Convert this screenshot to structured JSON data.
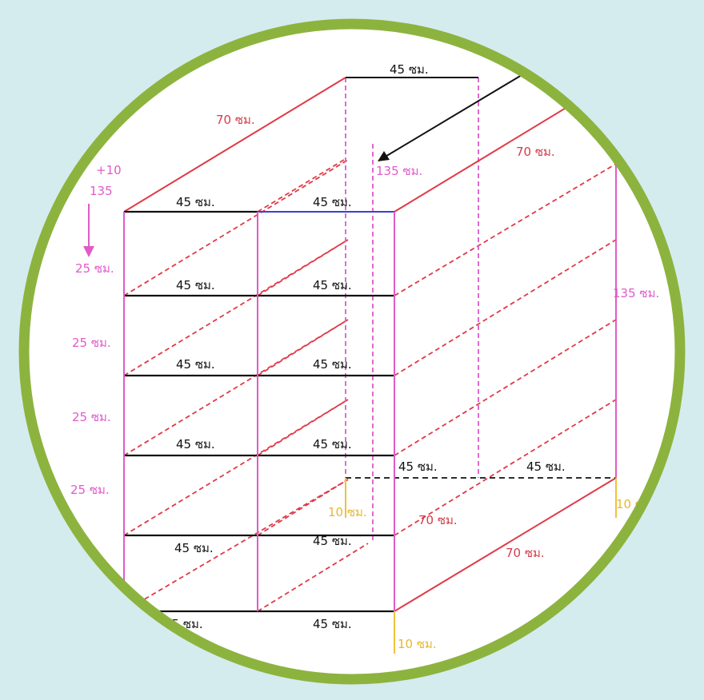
{
  "colors": {
    "background": "#d4ecee",
    "ring": "#8db33f",
    "disc": "#ffffff",
    "edge_red": "#e03a47",
    "post_pink": "#e05bc9",
    "shelf_black": "#111111",
    "top_blue": "#3a3fd6",
    "leg_yellow": "#f0c23a",
    "label_red": "#d33c4a",
    "label_pink": "#e05bc9",
    "label_yellow": "#e6b830",
    "label_black": "#111111"
  },
  "labels": {
    "top_width": "45 ซม.",
    "top_depth_left": "70 ซม.",
    "top_depth_right": "70 ซม.",
    "inner_height": "135 ซม.",
    "right_height": "135 ซม.",
    "side_note_1": "+10",
    "side_note_2": "135",
    "gap_1": "25 ซม.",
    "gap_2": "25 ซม.",
    "gap_3": "25 ซม.",
    "gap_4": "25 ซม.",
    "shelf_1_left": "45 ซม.",
    "shelf_1_right": "45 ซม.",
    "shelf_2_left": "45 ซม.",
    "shelf_2_right": "45 ซม.",
    "shelf_3_left": "45 ซม.",
    "shelf_3_right": "45 ซม.",
    "shelf_4_left": "45 ซม.",
    "shelf_4_right": "45 ซม.",
    "back_bottom_left": "45 ซม.",
    "back_bottom_right": "45 ซม.",
    "shelf_5_left": "45 ซม.",
    "shelf_5_right": "45 ซม.",
    "bottom_left": "45 ซม.",
    "bottom_right": "45 ซม.",
    "back_leg": "10 ซม.",
    "right_leg": "10 ซ",
    "front_leg": "10 ซม.",
    "bottom_depth_inner": "70 ซม.",
    "bottom_depth_outer": "70 ซม."
  }
}
